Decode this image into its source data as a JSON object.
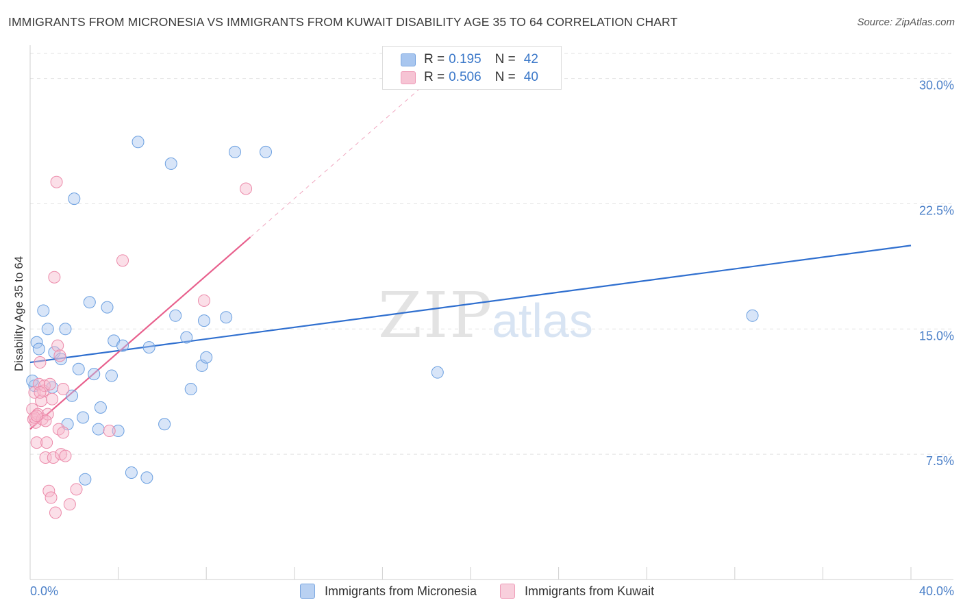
{
  "title": "IMMIGRANTS FROM MICRONESIA VS IMMIGRANTS FROM KUWAIT DISABILITY AGE 35 TO 64 CORRELATION CHART",
  "source": "Source: ZipAtlas.com",
  "watermark": {
    "zip": "ZIP",
    "atlas": "atlas"
  },
  "legend": {
    "rows": [
      {
        "r_label": "R =",
        "r_value": "0.195",
        "n_label": "N =",
        "n_value": "42",
        "color": "#a8c6ef"
      },
      {
        "r_label": "R =",
        "r_value": "0.506",
        "n_label": "N =",
        "n_value": "40",
        "color": "#f6b8cc"
      }
    ]
  },
  "bottom_legend": [
    {
      "label": "Immigrants from Micronesia",
      "color": "#a8c6ef"
    },
    {
      "label": "Immigrants from Kuwait",
      "color": "#f6b8cc"
    }
  ],
  "chart_data": {
    "type": "scatter",
    "title": "IMMIGRANTS FROM MICRONESIA VS IMMIGRANTS FROM KUWAIT DISABILITY AGE 35 TO 64 CORRELATION CHART",
    "xlabel": "",
    "ylabel": "Disability Age 35 to 64",
    "xlim": [
      0,
      40
    ],
    "ylim": [
      0,
      31.5
    ],
    "x_tick_labels": [
      "0.0%",
      "40.0%"
    ],
    "y_ticks": [
      7.5,
      15.0,
      22.5,
      30.0
    ],
    "y_tick_labels": [
      "7.5%",
      "15.0%",
      "22.5%",
      "30.0%"
    ],
    "grid": "horizontal dashed",
    "legend_position": "top-center",
    "series": [
      {
        "name": "Immigrants from Micronesia",
        "color": "#a8c6ef",
        "stroke": "#6a9fe0",
        "trend_color": "#2f6fcf",
        "trend": {
          "x": [
            0,
            40
          ],
          "y": [
            13.0,
            20.0
          ]
        },
        "points": [
          [
            0.2,
            11.6
          ],
          [
            0.3,
            14.2
          ],
          [
            0.4,
            13.8
          ],
          [
            0.6,
            16.1
          ],
          [
            0.8,
            15.0
          ],
          [
            1.0,
            11.5
          ],
          [
            1.1,
            13.6
          ],
          [
            1.4,
            13.2
          ],
          [
            1.6,
            15.0
          ],
          [
            1.7,
            9.3
          ],
          [
            1.9,
            11.0
          ],
          [
            2.0,
            22.8
          ],
          [
            2.2,
            12.6
          ],
          [
            2.4,
            9.7
          ],
          [
            2.5,
            6.0
          ],
          [
            2.7,
            16.6
          ],
          [
            2.9,
            12.3
          ],
          [
            3.1,
            9.0
          ],
          [
            3.2,
            10.3
          ],
          [
            3.5,
            16.3
          ],
          [
            3.7,
            12.2
          ],
          [
            3.8,
            14.3
          ],
          [
            4.0,
            8.9
          ],
          [
            4.2,
            14.0
          ],
          [
            4.6,
            6.4
          ],
          [
            4.9,
            26.2
          ],
          [
            5.3,
            6.1
          ],
          [
            5.4,
            13.9
          ],
          [
            6.1,
            9.3
          ],
          [
            6.4,
            24.9
          ],
          [
            6.6,
            15.8
          ],
          [
            7.1,
            14.5
          ],
          [
            7.3,
            11.4
          ],
          [
            7.8,
            12.8
          ],
          [
            7.9,
            15.5
          ],
          [
            8.0,
            13.3
          ],
          [
            8.9,
            15.7
          ],
          [
            9.3,
            25.6
          ],
          [
            10.7,
            25.6
          ],
          [
            18.5,
            12.4
          ],
          [
            32.8,
            15.8
          ],
          [
            0.1,
            11.9
          ]
        ]
      },
      {
        "name": "Immigrants from Kuwait",
        "color": "#f6b8cc",
        "stroke": "#ec8aaa",
        "trend_color": "#e8608d",
        "trend": {
          "x": [
            0,
            10
          ],
          "y": [
            9.0,
            20.5
          ]
        },
        "trend_extension": {
          "x": [
            10,
            19
          ],
          "y": [
            20.5,
            30.9
          ]
        },
        "points": [
          [
            0.1,
            10.2
          ],
          [
            0.15,
            9.6
          ],
          [
            0.2,
            11.2
          ],
          [
            0.25,
            9.4
          ],
          [
            0.3,
            8.2
          ],
          [
            0.35,
            9.9
          ],
          [
            0.4,
            11.7
          ],
          [
            0.45,
            13.0
          ],
          [
            0.5,
            10.7
          ],
          [
            0.55,
            9.6
          ],
          [
            0.6,
            11.3
          ],
          [
            0.65,
            11.6
          ],
          [
            0.7,
            7.3
          ],
          [
            0.75,
            8.2
          ],
          [
            0.8,
            9.9
          ],
          [
            0.85,
            5.3
          ],
          [
            0.9,
            11.7
          ],
          [
            0.95,
            4.9
          ],
          [
            1.0,
            10.8
          ],
          [
            1.05,
            7.3
          ],
          [
            1.1,
            18.1
          ],
          [
            1.15,
            4.0
          ],
          [
            1.2,
            23.8
          ],
          [
            1.25,
            14.0
          ],
          [
            1.3,
            9.0
          ],
          [
            1.35,
            13.4
          ],
          [
            1.4,
            7.5
          ],
          [
            1.5,
            11.4
          ],
          [
            1.5,
            8.8
          ],
          [
            1.6,
            7.4
          ],
          [
            1.8,
            4.5
          ],
          [
            2.1,
            5.4
          ],
          [
            3.6,
            8.9
          ],
          [
            4.2,
            19.1
          ],
          [
            7.9,
            16.7
          ],
          [
            9.8,
            23.4
          ],
          [
            0.2,
            9.7
          ],
          [
            0.45,
            11.2
          ],
          [
            0.7,
            9.5
          ],
          [
            0.3,
            9.8
          ]
        ]
      }
    ]
  }
}
